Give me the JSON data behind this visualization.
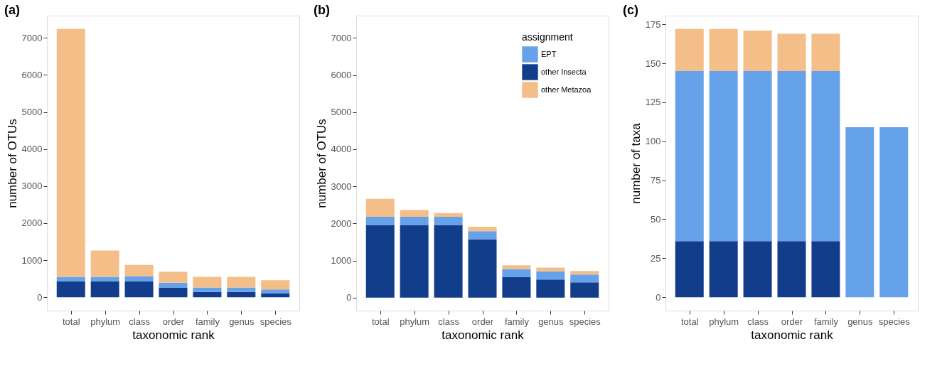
{
  "chart_data": [
    {
      "type": "bar",
      "stacked": true,
      "title": "(a)",
      "xlabel": "taxonomic rank",
      "ylabel": "number of OTUs",
      "categories": [
        "total",
        "phylum",
        "class",
        "order",
        "family",
        "genus",
        "species"
      ],
      "ylim": [
        -362,
        7602
      ],
      "yticks": [
        0,
        1000,
        2000,
        3000,
        4000,
        5000,
        6000,
        7000
      ],
      "grid": false,
      "legend": false,
      "series": [
        {
          "color": "#113d8a",
          "values": [
            430,
            430,
            430,
            250,
            140,
            140,
            110
          ]
        },
        {
          "color": "#66a2ea",
          "values": [
            120,
            120,
            140,
            140,
            120,
            120,
            100
          ]
        },
        {
          "color": "#f4be88",
          "values": [
            6690,
            710,
            300,
            300,
            290,
            290,
            250
          ]
        }
      ]
    },
    {
      "type": "bar",
      "stacked": true,
      "title": "(b)",
      "xlabel": "taxonomic rank",
      "ylabel": "number of OTUs",
      "legend_title": "assignment",
      "categories": [
        "total",
        "phylum",
        "class",
        "order",
        "family",
        "genus",
        "species"
      ],
      "ylim": [
        -350,
        7600
      ],
      "yticks": [
        0,
        1000,
        2000,
        3000,
        4000,
        5000,
        6000,
        7000
      ],
      "grid": false,
      "legend": "top right",
      "series": [
        {
          "name": "other Insecta",
          "color": "#113d8a",
          "values": [
            1960,
            1960,
            1960,
            1570,
            550,
            490,
            410
          ]
        },
        {
          "name": "EPT",
          "color": "#66a2ea",
          "values": [
            220,
            220,
            220,
            220,
            220,
            220,
            210
          ]
        },
        {
          "name": "other Metazoa",
          "color": "#f4be88",
          "values": [
            480,
            180,
            100,
            120,
            100,
            100,
            100
          ]
        }
      ]
    },
    {
      "type": "bar",
      "stacked": true,
      "title": "(c)",
      "xlabel": "taxonomic rank",
      "ylabel": "number of taxa",
      "categories": [
        "total",
        "phylum",
        "class",
        "order",
        "family",
        "genus",
        "species"
      ],
      "ylim": [
        -8.6,
        180.6
      ],
      "yticks": [
        0,
        25,
        50,
        75,
        100,
        125,
        150,
        175
      ],
      "grid": false,
      "legend": false,
      "series": [
        {
          "color": "#113d8a",
          "values": [
            36,
            36,
            36,
            36,
            36,
            0,
            0
          ]
        },
        {
          "color": "#66a2ea",
          "values": [
            109,
            109,
            109,
            109,
            109,
            109,
            109
          ]
        },
        {
          "color": "#f4be88",
          "values": [
            27,
            27,
            26,
            24,
            24,
            0,
            0
          ]
        }
      ]
    }
  ]
}
